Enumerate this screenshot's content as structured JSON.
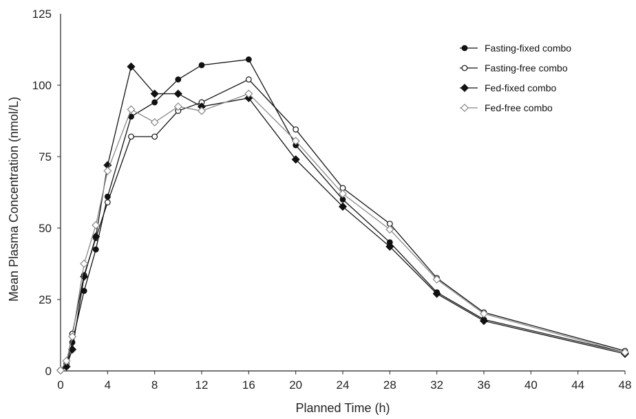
{
  "chart_data": {
    "type": "line",
    "title": "",
    "xlabel": "Planned Time (h)",
    "ylabel": "Mean Plasma Concentration (nmol/L)",
    "xlim": [
      0,
      48
    ],
    "ylim": [
      0,
      125
    ],
    "xticks": [
      0,
      4,
      8,
      12,
      16,
      20,
      24,
      28,
      32,
      36,
      40,
      44,
      48
    ],
    "yticks": [
      0,
      25,
      50,
      75,
      100,
      125
    ],
    "grid": false,
    "legend_position": "top-right",
    "series": [
      {
        "name": "Fasting-fixed combo",
        "marker": "filled-circle",
        "color": "#111111",
        "x": [
          0,
          0.5,
          1,
          2,
          3,
          4,
          6,
          8,
          10,
          12,
          16,
          20,
          24,
          28,
          32,
          36,
          48
        ],
        "y": [
          0.2,
          1.5,
          10,
          28,
          42.5,
          61,
          89,
          94,
          102,
          107,
          109,
          79,
          60,
          45,
          27.5,
          18,
          6.5
        ]
      },
      {
        "name": "Fasting-free combo",
        "marker": "open-circle",
        "color": "#111111",
        "x": [
          0,
          0.5,
          1,
          2,
          3,
          4,
          6,
          8,
          10,
          12,
          16,
          20,
          24,
          28,
          32,
          36,
          48
        ],
        "y": [
          0.2,
          2.5,
          13,
          33.5,
          46.5,
          59,
          82,
          82,
          91,
          94,
          102,
          84.5,
          64,
          51.5,
          32.5,
          20.5,
          7
        ]
      },
      {
        "name": "Fed-fixed combo",
        "marker": "filled-diamond",
        "color": "#111111",
        "x": [
          0,
          0.5,
          1,
          2,
          3,
          4,
          6,
          8,
          10,
          12,
          16,
          20,
          24,
          28,
          32,
          36,
          48
        ],
        "y": [
          0.2,
          1.5,
          7.5,
          33,
          47,
          72,
          106.5,
          97,
          97,
          92.5,
          95.5,
          74,
          57.5,
          43.5,
          27,
          17.5,
          6
        ]
      },
      {
        "name": "Fed-free combo",
        "marker": "open-diamond",
        "color": "#888888",
        "x": [
          0,
          0.5,
          1,
          2,
          3,
          4,
          6,
          8,
          10,
          12,
          16,
          20,
          24,
          28,
          32,
          36,
          48
        ],
        "y": [
          0.2,
          3.5,
          12,
          37.5,
          51,
          70,
          91.5,
          87,
          92.5,
          91,
          97,
          80.5,
          62,
          49.5,
          32,
          20,
          6.5
        ]
      }
    ]
  }
}
